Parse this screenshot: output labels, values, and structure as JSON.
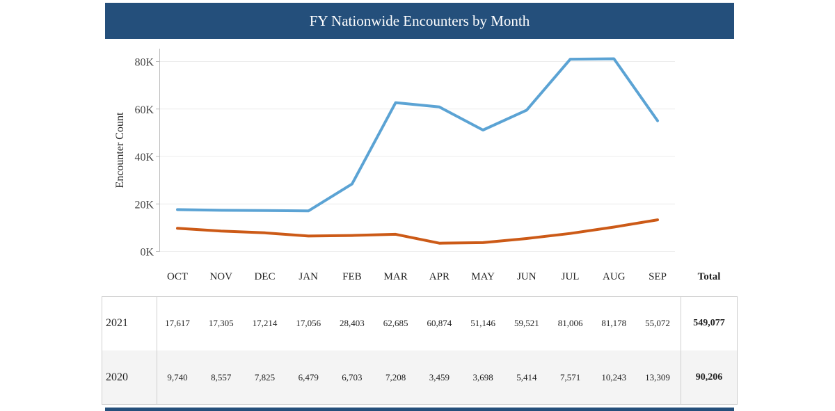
{
  "title": "FY Nationwide Encounters by Month",
  "colors": {
    "header_bg": "#244f7b",
    "series_2021": "#5ba3d4",
    "series_2020": "#cc5a17"
  },
  "chart_data": {
    "type": "line",
    "title": "FY Nationwide Encounters by Month",
    "xlabel": "",
    "ylabel": "Encounter Count",
    "categories": [
      "OCT",
      "NOV",
      "DEC",
      "JAN",
      "FEB",
      "MAR",
      "APR",
      "MAY",
      "JUN",
      "JUL",
      "AUG",
      "SEP"
    ],
    "ylim": [
      0,
      85000
    ],
    "yticks": [
      0,
      20000,
      40000,
      60000,
      80000
    ],
    "ytick_labels": [
      "0K",
      "20K",
      "40K",
      "60K",
      "80K"
    ],
    "series": [
      {
        "name": "2021",
        "color": "#5ba3d4",
        "values": [
          17617,
          17305,
          17214,
          17056,
          28403,
          62685,
          60874,
          51146,
          59521,
          81006,
          81178,
          55072
        ]
      },
      {
        "name": "2020",
        "color": "#cc5a17",
        "values": [
          9740,
          8557,
          7825,
          6479,
          6703,
          7208,
          3459,
          3698,
          5414,
          7571,
          10243,
          13309
        ]
      }
    ]
  },
  "table": {
    "total_header": "Total",
    "rows": [
      {
        "year": "2021",
        "values": [
          "17,617",
          "17,305",
          "17,214",
          "17,056",
          "28,403",
          "62,685",
          "60,874",
          "51,146",
          "59,521",
          "81,006",
          "81,178",
          "55,072"
        ],
        "total": "549,077"
      },
      {
        "year": "2020",
        "values": [
          "9,740",
          "8,557",
          "7,825",
          "6,479",
          "6,703",
          "7,208",
          "3,459",
          "3,698",
          "5,414",
          "7,571",
          "10,243",
          "13,309"
        ],
        "total": "90,206"
      }
    ]
  }
}
